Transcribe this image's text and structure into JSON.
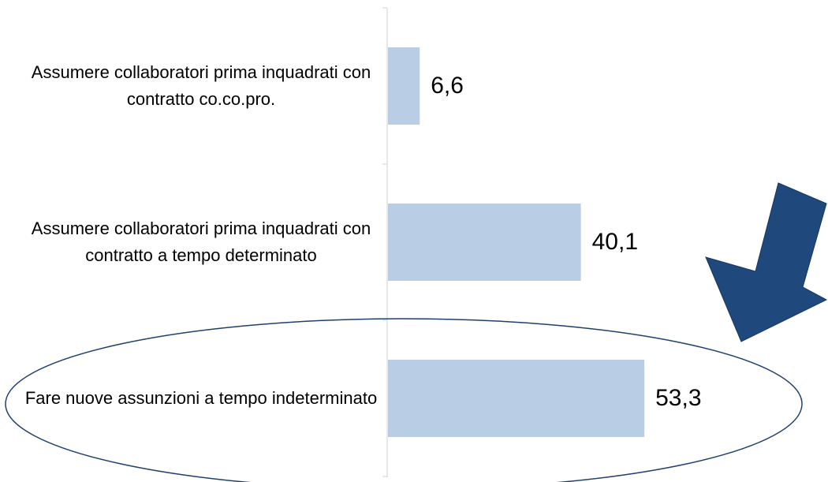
{
  "chart_data": {
    "type": "bar",
    "orientation": "horizontal",
    "categories": [
      "Assumere collaboratori prima inquadrati con contratto co.co.pro.",
      "Assumere collaboratori prima inquadrati con contratto a tempo determinato",
      "Fare nuove assunzioni a tempo indeterminato"
    ],
    "values": [
      6.6,
      40.1,
      53.3
    ],
    "value_labels": [
      "6,6",
      "40,1",
      "53,3"
    ],
    "color": "#b9cde5"
  }
}
